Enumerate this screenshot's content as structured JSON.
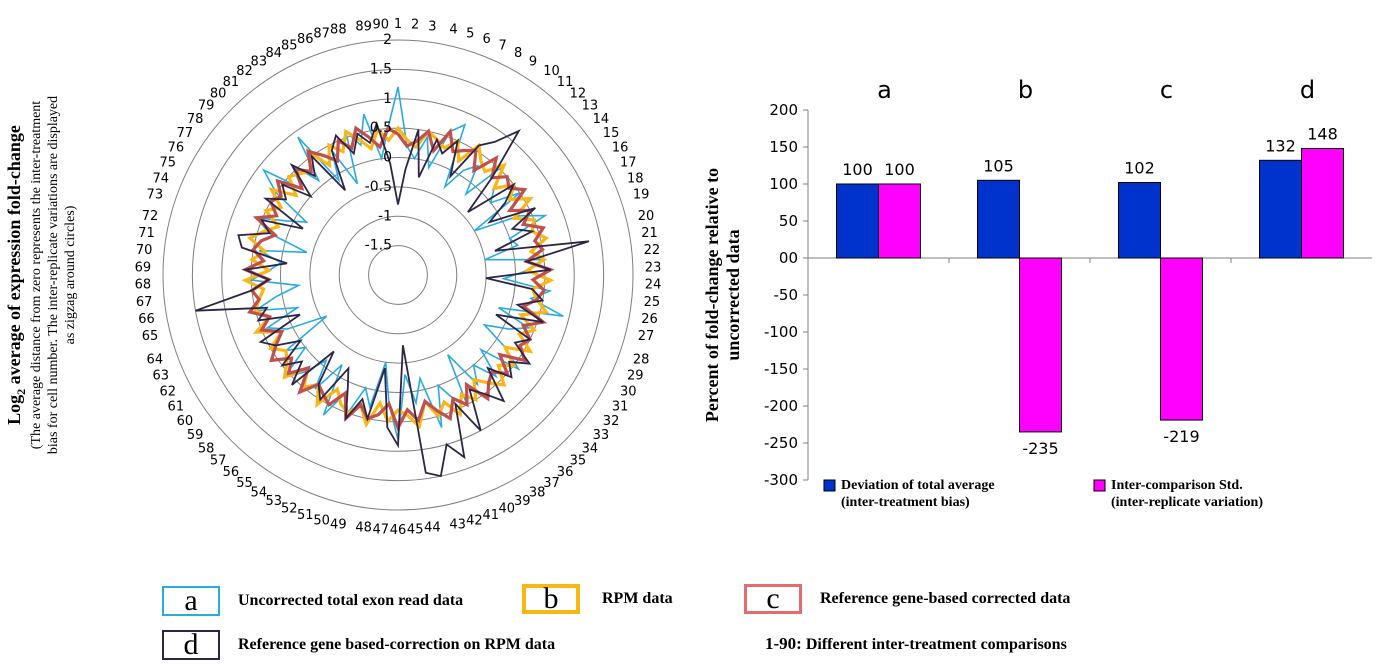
{
  "chart_data": [
    {
      "type": "radar",
      "ylabel": "Log₂ average of expression fold-change",
      "ylabel_parts": {
        "prefix": "Log",
        "subscript": "2",
        "suffix": " average of expression fold-change"
      },
      "ylabel_note": "(The average distance from zero represents the inter-treatment bias for cell number. The inter-replicate variations are displayed as zigzag around circles)",
      "ylabel_note_lines": [
        "(The average distance from zero represents the inter-treatment",
        "bias for cell number. The inter-replicate variations are displayed",
        "as zigzag around circles)"
      ],
      "categories": [
        "1",
        "2",
        "3",
        "4",
        "5",
        "6",
        "7",
        "8",
        "9",
        "10",
        "11",
        "12",
        "13",
        "14",
        "15",
        "16",
        "17",
        "18",
        "19",
        "20",
        "21",
        "22",
        "23",
        "24",
        "25",
        "26",
        "27",
        "28",
        "29",
        "30",
        "31",
        "32",
        "33",
        "34",
        "35",
        "36",
        "37",
        "38",
        "39",
        "40",
        "41",
        "42",
        "43",
        "44",
        "45",
        "46",
        "47",
        "48",
        "49",
        "50",
        "51",
        "52",
        "53",
        "54",
        "55",
        "56",
        "57",
        "58",
        "59",
        "60",
        "61",
        "62",
        "63",
        "64",
        "65",
        "66",
        "67",
        "68",
        "69",
        "70",
        "71",
        "72",
        "73",
        "74",
        "75",
        "76",
        "77",
        "78",
        "79",
        "80",
        "81",
        "82",
        "83",
        "84",
        "85",
        "86",
        "87",
        "88",
        "89",
        "90"
      ],
      "rlim": [
        -2,
        2
      ],
      "ticks": [
        "2",
        "1.5",
        "1",
        "0.5",
        "0",
        "-0.5",
        "-1",
        "-1.5"
      ],
      "series": [
        {
          "key": "a",
          "color": "#29abe2",
          "values": [
            1.2,
            0.2,
            0.0,
            0.4,
            -0.1,
            0.6,
            0.8,
            -0.3,
            0.1,
            0.3,
            -0.2,
            0.6,
            0.2,
            0.0,
            0.5,
            -0.5,
            0.3,
            0.7,
            0.0,
            0.1,
            -0.5,
            0.5,
            0.2,
            -0.2,
            0.6,
            0.3,
            0.9,
            -0.2,
            0.4,
            0.1,
            -0.3,
            0.2,
            0.6,
            -0.1,
            0.4,
            0.0,
            0.3,
            -0.4,
            0.5,
            0.3,
            0.0,
            0.7,
            -0.2,
            0.2,
            -0.3,
            0.8,
            0.2,
            -0.5,
            0.3,
            0.0,
            0.5,
            0.2,
            0.7,
            -0.2,
            0.4,
            -0.1,
            0.3,
            0.6,
            0.0,
            0.3,
            -0.6,
            0.1,
            0.4,
            -0.2,
            0.5,
            0.1,
            -0.3,
            0.5,
            0.2,
            0.0,
            0.4,
            -0.4,
            0.3,
            0.6,
            0.1,
            -0.2,
            0.5,
            0.9,
            0.2,
            0.6,
            0.1,
            0.9,
            -0.1,
            0.4,
            -0.3,
            0.6,
            0.3,
            0.8,
            0.0,
            0.5
          ]
        },
        {
          "key": "b",
          "color": "#f9b716",
          "values": [
            0.5,
            0.3,
            0.2,
            0.5,
            0.4,
            0.3,
            0.5,
            0.2,
            0.6,
            0.4,
            0.3,
            0.6,
            0.2,
            0.5,
            0.3,
            0.6,
            0.2,
            0.5,
            0.4,
            0.6,
            0.3,
            0.5,
            0.2,
            0.6,
            0.3,
            0.4,
            0.6,
            0.2,
            0.5,
            0.3,
            0.6,
            0.2,
            0.5,
            0.3,
            0.6,
            0.4,
            0.2,
            0.5,
            0.3,
            0.6,
            0.3,
            0.5,
            0.2,
            0.6,
            0.4,
            0.3,
            0.5,
            0.2,
            0.6,
            0.3,
            0.5,
            0.4,
            0.2,
            0.6,
            0.3,
            0.5,
            0.2,
            0.6,
            0.4,
            0.3,
            0.5,
            0.2,
            0.6,
            0.3,
            0.5,
            0.4,
            0.3,
            0.6,
            0.2,
            0.5,
            0.3,
            0.6,
            0.4,
            0.2,
            0.5,
            0.3,
            0.6,
            0.2,
            0.5,
            0.4,
            0.3,
            0.6,
            0.2,
            0.5,
            0.3,
            0.6,
            0.4,
            0.2,
            0.5,
            0.3
          ]
        },
        {
          "key": "c",
          "color": "#c0504d",
          "values": [
            0.4,
            0.2,
            0.3,
            0.5,
            0.2,
            0.6,
            0.3,
            0.4,
            0.5,
            0.2,
            0.6,
            0.3,
            0.5,
            0.4,
            0.6,
            0.2,
            0.5,
            0.3,
            0.6,
            0.4,
            0.5,
            0.2,
            0.6,
            0.3,
            0.5,
            0.4,
            0.2,
            0.6,
            0.3,
            0.5,
            0.4,
            0.6,
            0.2,
            0.5,
            0.3,
            0.4,
            0.6,
            0.2,
            0.5,
            0.3,
            0.6,
            0.4,
            0.2,
            0.5,
            0.3,
            0.6,
            0.2,
            0.4,
            0.5,
            0.3,
            0.6,
            0.2,
            0.5,
            0.4,
            0.3,
            0.6,
            0.2,
            0.5,
            0.3,
            0.6,
            0.4,
            0.2,
            0.5,
            0.3,
            0.6,
            0.4,
            0.5,
            0.2,
            0.6,
            0.3,
            0.5,
            0.4,
            0.2,
            0.6,
            0.3,
            0.5,
            0.4,
            0.6,
            0.2,
            0.5,
            0.3,
            0.6,
            0.4,
            0.2,
            0.5,
            0.3,
            0.6,
            0.4,
            0.2,
            0.5
          ]
        },
        {
          "key": "d",
          "color": "#2e2445",
          "values": [
            -0.8,
            -0.2,
            0.5,
            -0.3,
            0.4,
            0.2,
            0.5,
            -0.1,
            0.6,
            0.8,
            1.2,
            0.3,
            -0.4,
            0.5,
            0.2,
            -0.2,
            0.6,
            0.1,
            0.4,
            -0.3,
            1.3,
            0.2,
            0.6,
            -0.5,
            0.3,
            0.5,
            0.1,
            0.6,
            -0.2,
            0.5,
            0.3,
            0.7,
            0.4,
            0.6,
            0.2,
            0.8,
            0.5,
            0.3,
            1.0,
            0.4,
            1.3,
            1.0,
            1.5,
            1.4,
            -0.8,
            0.9,
            0.6,
            -0.4,
            0.5,
            0.2,
            0.6,
            0.1,
            -0.2,
            0.5,
            0.3,
            -0.3,
            0.6,
            0.2,
            0.5,
            0.0,
            0.4,
            0.6,
            -0.2,
            0.5,
            0.3,
            1.5,
            0.5,
            0.2,
            0.6,
            -0.1,
            0.7,
            0.8,
            0.3,
            0.5,
            -0.2,
            0.6,
            0.3,
            0.5,
            0.0,
            0.6,
            0.2,
            0.5,
            -0.3,
            0.4,
            0.6,
            0.2,
            0.5,
            0.3,
            0.6,
            -0.1
          ]
        }
      ]
    },
    {
      "type": "bar",
      "ylabel": "Percent of fold-change relative to uncorrected data",
      "ylabel_lines": [
        "Percent of fold-change relative to",
        "uncorrected data"
      ],
      "ylim": [
        -300,
        200
      ],
      "yticks": [
        "200",
        "150",
        "100",
        "50",
        "00",
        "-50",
        "-100",
        "-150",
        "-200",
        "-250",
        "-300"
      ],
      "ytick_values": [
        200,
        150,
        100,
        50,
        0,
        -50,
        -100,
        -150,
        -200,
        -250,
        -300
      ],
      "categories": [
        "a",
        "b",
        "c",
        "d"
      ],
      "series": [
        {
          "name": "Deviation of total average (inter-treatment bias)",
          "name_lines": [
            "Deviation of total average",
            "(inter-treatment bias)"
          ],
          "color": "#0033cc",
          "values": [
            100,
            105,
            102,
            132
          ],
          "labels": [
            "100",
            "105",
            "102",
            "132"
          ]
        },
        {
          "name": "Inter-comparison Std. (inter-replicate variation)",
          "name_lines": [
            "Inter-comparison Std.",
            "(inter-replicate variation)"
          ],
          "color": "#ff00ff",
          "values": [
            100,
            -235,
            -219,
            148
          ],
          "labels": [
            "100",
            "-235",
            "-219",
            "148"
          ]
        }
      ]
    }
  ],
  "legend": [
    {
      "key": "a",
      "label": "Uncorrected total exon read data",
      "color": "#29abe2"
    },
    {
      "key": "b",
      "label": "RPM data",
      "color": "#f9b716"
    },
    {
      "key": "c",
      "label": "Reference gene-based corrected data",
      "color": "#e46c6c"
    },
    {
      "key": "d",
      "label": "Reference gene based-correction on RPM data",
      "color": "#2e2445"
    }
  ],
  "note": {
    "key": "1-90:",
    "text": "Different inter-treatment comparisons"
  }
}
